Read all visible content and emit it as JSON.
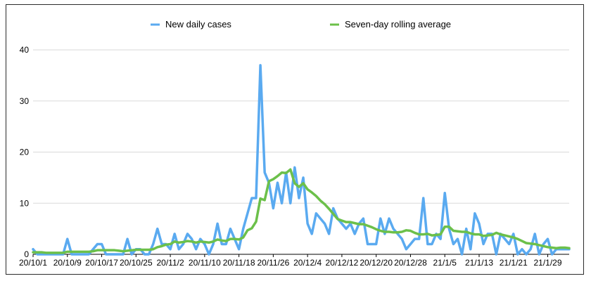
{
  "chart_data": {
    "type": "line",
    "title": "",
    "xlabel": "",
    "ylabel": "",
    "ylim": [
      0,
      40
    ],
    "yticks": [
      0,
      10,
      20,
      30,
      40
    ],
    "grid": true,
    "legend_position": "top-center",
    "x_tick_labels": [
      "20/10/1",
      "20/10/9",
      "20/10/17",
      "20/10/25",
      "20/11/2",
      "20/11/10",
      "20/11/18",
      "20/11/26",
      "20/12/4",
      "20/12/12",
      "20/12/20",
      "20/12/28",
      "21/1/5",
      "21/1/13",
      "21/1/21",
      "21/1/29"
    ],
    "x_tick_every_n_days": 8,
    "series": [
      {
        "name": "New daily cases",
        "color": "#5aaaf0",
        "values": [
          1,
          0,
          0,
          0,
          0,
          0,
          0,
          0,
          3,
          0,
          0,
          0,
          0,
          0,
          1,
          2,
          2,
          0,
          0,
          0,
          0,
          0,
          3,
          0,
          1,
          1,
          0,
          0,
          2,
          5,
          2,
          2,
          1,
          4,
          1,
          2,
          4,
          3,
          1,
          3,
          2,
          0,
          2,
          6,
          2,
          2,
          5,
          3,
          1,
          5,
          8,
          11,
          11,
          37,
          16,
          14,
          9,
          14,
          10,
          16,
          10,
          17,
          11,
          15,
          6,
          4,
          8,
          7,
          6,
          4,
          9,
          7,
          6,
          5,
          6,
          4,
          6,
          7,
          2,
          2,
          2,
          7,
          4,
          7,
          5,
          4,
          3,
          1,
          2,
          3,
          3,
          11,
          2,
          2,
          4,
          3,
          12,
          5,
          2,
          3,
          0,
          5,
          1,
          8,
          6,
          2,
          4,
          4,
          0,
          4,
          3,
          2,
          4,
          0,
          1,
          0,
          1,
          4,
          0,
          2,
          3,
          0,
          1,
          1,
          1,
          1
        ]
      },
      {
        "name": "Seven-day rolling average",
        "color": "#6cc04a",
        "values": [
          0.4,
          0.4,
          0.4,
          0.3,
          0.3,
          0.3,
          0.3,
          0.3,
          0.5,
          0.5,
          0.5,
          0.5,
          0.5,
          0.5,
          0.6,
          0.8,
          0.8,
          0.8,
          0.8,
          0.8,
          0.7,
          0.6,
          0.7,
          0.8,
          0.9,
          0.9,
          0.9,
          0.9,
          1.0,
          1.4,
          1.6,
          1.9,
          2.0,
          2.5,
          2.3,
          2.4,
          2.6,
          2.5,
          2.3,
          2.5,
          2.4,
          2.3,
          2.5,
          2.9,
          2.7,
          2.6,
          3.0,
          3.0,
          2.9,
          3.3,
          4.7,
          5.1,
          6.4,
          10.9,
          10.6,
          14.3,
          14.7,
          15.3,
          16.0,
          15.9,
          16.6,
          13.9,
          13.2,
          13.9,
          12.7,
          12.1,
          11.4,
          10.5,
          9.8,
          8.9,
          7.9,
          6.9,
          6.6,
          6.3,
          6.3,
          6.1,
          5.9,
          5.9,
          5.6,
          5.3,
          4.9,
          4.6,
          4.4,
          4.4,
          4.3,
          4.3,
          4.4,
          4.7,
          4.6,
          4.2,
          3.9,
          3.9,
          4.0,
          3.7,
          3.8,
          3.9,
          5.4,
          5.4,
          4.6,
          4.5,
          4.4,
          4.4,
          4.1,
          3.9,
          3.9,
          3.6,
          3.7,
          3.8,
          4.2,
          3.9,
          3.7,
          3.5,
          3.3,
          3.0,
          2.6,
          2.2,
          2.1,
          2.0,
          1.8,
          1.6,
          1.4,
          1.3,
          1.2,
          1.3,
          1.3,
          1.2
        ]
      }
    ]
  }
}
